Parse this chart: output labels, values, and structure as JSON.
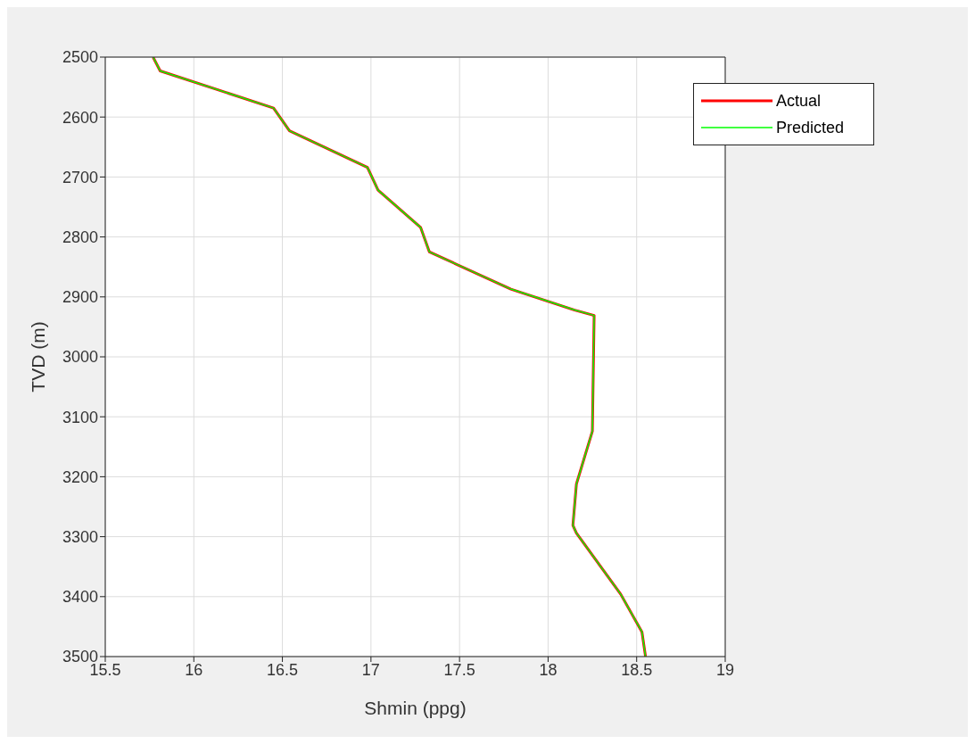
{
  "chart_data": {
    "type": "line",
    "xlabel": "Shmin (ppg)",
    "ylabel": "TVD (m)",
    "xlim": [
      15.5,
      19
    ],
    "xticks": [
      15.5,
      16,
      16.5,
      17,
      17.5,
      18,
      18.5,
      19
    ],
    "ylim": [
      3500,
      2500
    ],
    "yticks": [
      2500,
      2600,
      2700,
      2800,
      2900,
      3000,
      3100,
      3200,
      3300,
      3400,
      3500
    ],
    "grid": true,
    "legend": "top right",
    "x": [
      15.77,
      15.81,
      16.45,
      16.54,
      16.98,
      17.04,
      17.28,
      17.33,
      17.79,
      18.15,
      18.26,
      18.25,
      18.16,
      18.14,
      18.16,
      18.41,
      18.53,
      18.55
    ],
    "series": [
      {
        "name": "Actual",
        "color": "#ff0000",
        "values": [
          2500,
          2523,
          2585,
          2623,
          2684,
          2722,
          2784,
          2825,
          2887,
          2922,
          2931,
          3124,
          3212,
          3281,
          3294,
          3396,
          3459,
          3500
        ]
      },
      {
        "name": "Predicted",
        "color": "#00ff00",
        "values": [
          2500,
          2523,
          2585,
          2623,
          2684,
          2722,
          2784,
          2825,
          2887,
          2922,
          2931,
          3124,
          3212,
          3281,
          3294,
          3396,
          3459,
          3500
        ]
      }
    ]
  }
}
